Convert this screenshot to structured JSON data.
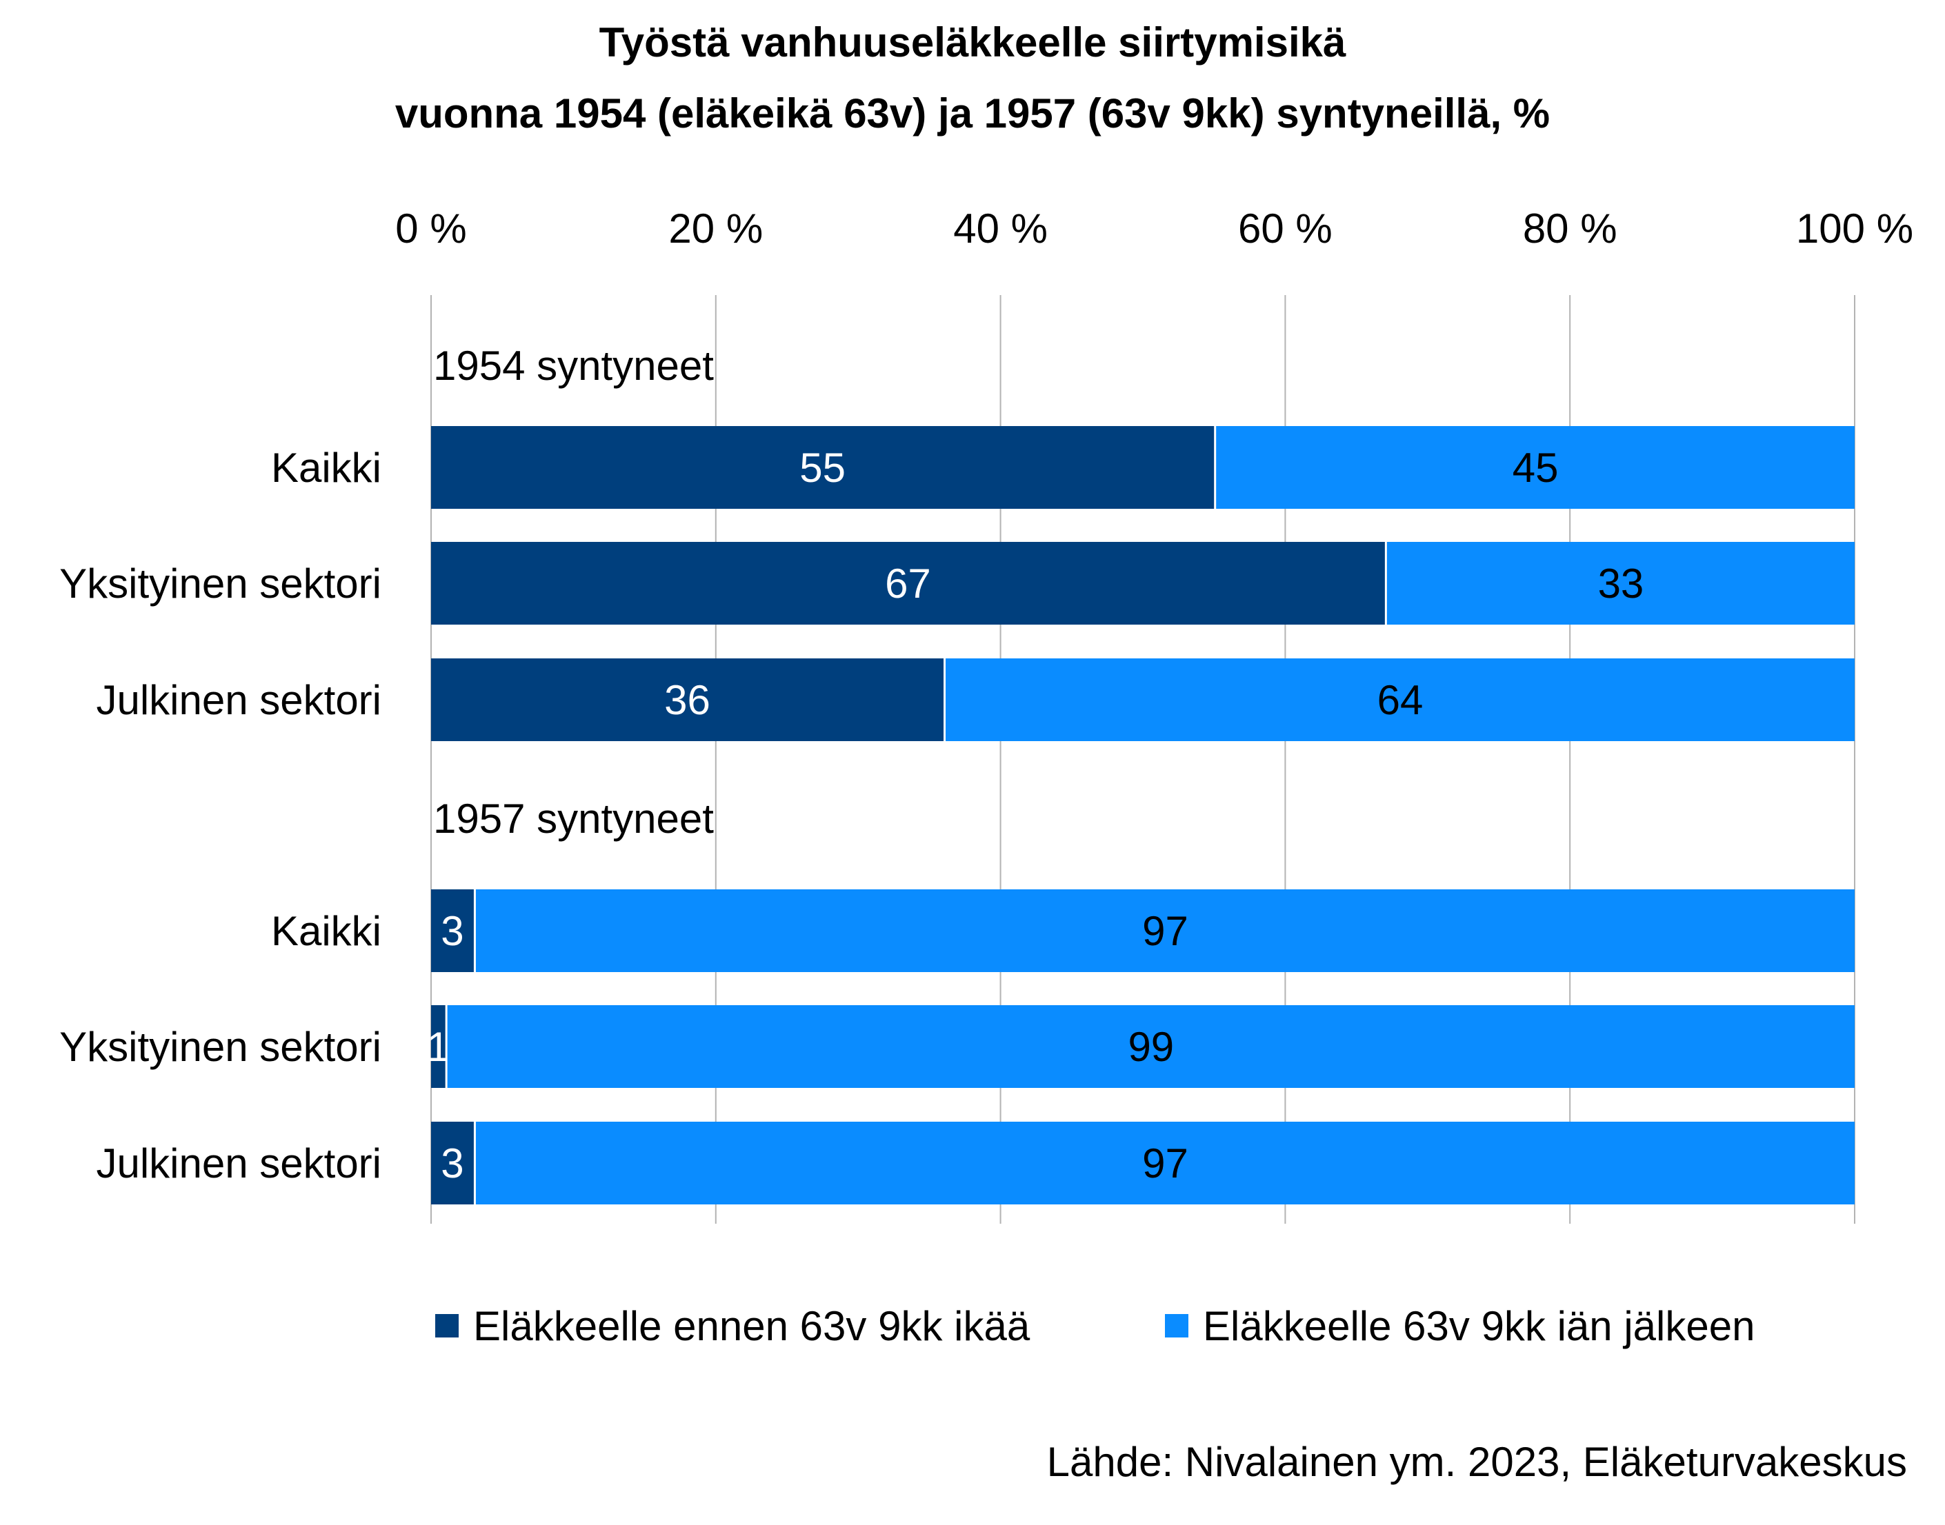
{
  "chart_data": {
    "type": "bar",
    "orientation": "horizontal",
    "stacked": "percent",
    "title": [
      "Työstä vanhuuseläkkeelle siirtymisikä",
      "vuonna 1954 (eläkeikä 63v) ja 1957 (63v 9kk) syntyneillä, %"
    ],
    "xlim": [
      0,
      100
    ],
    "xticks": [
      "0 %",
      "20 %",
      "40 %",
      "60 %",
      "80 %",
      "100 %"
    ],
    "grid": true,
    "legend_position": "bottom",
    "groups": [
      {
        "label": "1954 syntyneet",
        "categories": [
          "Kaikki",
          "Yksityinen sektori",
          "Julkinen sektori"
        ],
        "values": [
          [
            55,
            45
          ],
          [
            67,
            33
          ],
          [
            36,
            64
          ]
        ]
      },
      {
        "label": "1957 syntyneet",
        "categories": [
          "Kaikki",
          "Yksityinen sektori",
          "Julkinen sektori"
        ],
        "values": [
          [
            3,
            97
          ],
          [
            1,
            99
          ],
          [
            3,
            97
          ]
        ]
      }
    ],
    "series": [
      {
        "name": "Eläkkeelle ennen 63v 9kk ikää",
        "color": "#003F7D",
        "label_color": "#ffffff"
      },
      {
        "name": "Eläkkeelle 63v 9kk iän jälkeen",
        "color": "#0A8CFF",
        "label_color": "#000000"
      }
    ],
    "source": "Lähde: Nivalainen ym. 2023, Eläketurvakeskus"
  }
}
